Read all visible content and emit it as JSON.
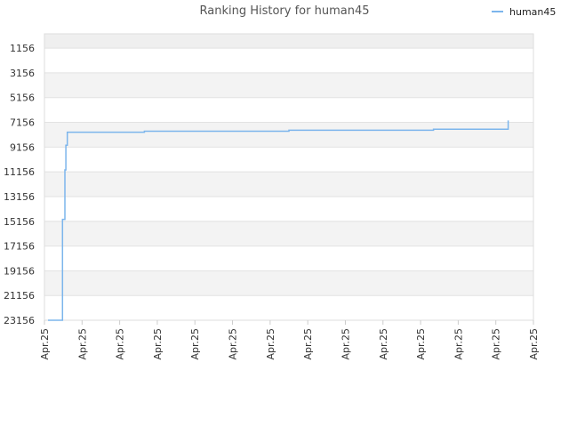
{
  "chart_data": {
    "type": "line",
    "title": "Ranking History for human45",
    "xlabel": "",
    "ylabel": "",
    "y_reversed": true,
    "ylim": [
      23156,
      0
    ],
    "yticks": [
      "1156",
      "3156",
      "5156",
      "7156",
      "9156",
      "11156",
      "13156",
      "15156",
      "17156",
      "19156",
      "21156",
      "23156"
    ],
    "ytick_values": [
      1156,
      3156,
      5156,
      7156,
      9156,
      11156,
      13156,
      15156,
      17156,
      19156,
      21156,
      23156
    ],
    "xticks": [
      "Apr.25",
      "Apr.25",
      "Apr.25",
      "Apr.25",
      "Apr.25",
      "Apr.25",
      "Apr.25",
      "Apr.25",
      "Apr.25",
      "Apr.25",
      "Apr.25",
      "Apr.25",
      "Apr.25",
      "Apr.25"
    ],
    "grid": true,
    "alternating_bands": true,
    "legend_position": "top-right",
    "series": [
      {
        "name": "human45",
        "color": "#7cb5ec",
        "x": [
          0.0,
          0.03,
          0.03,
          0.03,
          0.035,
          0.035,
          0.037,
          0.037,
          0.04,
          0.04,
          0.2,
          0.2,
          0.5,
          0.5,
          0.8,
          0.8,
          0.955,
          0.955
        ],
        "y": [
          23156,
          23156,
          20000,
          15000,
          15000,
          11000,
          11000,
          9000,
          9000,
          7956,
          7956,
          7876,
          7876,
          7796,
          7796,
          7716,
          7716,
          7006
        ]
      }
    ]
  }
}
